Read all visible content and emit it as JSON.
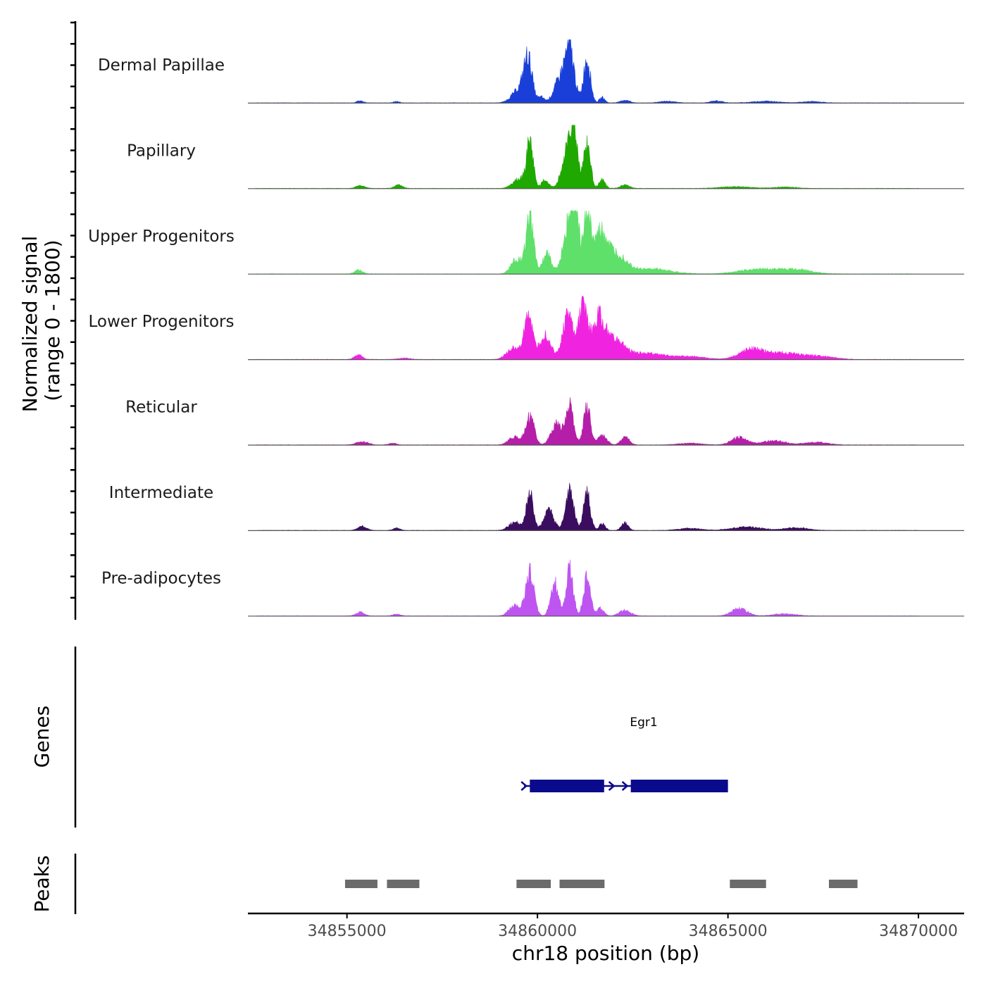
{
  "chart_data": {
    "type": "area",
    "ylabel_line1": "Normalized signal",
    "ylabel_line2": "(range 0 - 1800)",
    "y_range": [
      0,
      1800
    ],
    "xlabel": "chr18 position (bp)",
    "x_range": [
      34852400,
      34871200
    ],
    "x_ticks": [
      34855000,
      34860000,
      34865000,
      34870000
    ],
    "x_tick_labels": [
      "34855000",
      "34860000",
      "34865000",
      "34870000"
    ],
    "tracks": [
      {
        "name": "Dermal Papillae",
        "color": "#1a3fd9",
        "peaks": [
          [
            34855350,
            30,
            90
          ],
          [
            34856300,
            25,
            70
          ],
          [
            34859750,
            620,
            110
          ],
          [
            34859500,
            180,
            180
          ],
          [
            34860600,
            340,
            160
          ],
          [
            34860850,
            720,
            120
          ],
          [
            34860100,
            80,
            80
          ],
          [
            34861300,
            650,
            90
          ],
          [
            34861700,
            80,
            70
          ],
          [
            34862300,
            40,
            120
          ],
          [
            34863400,
            25,
            200
          ],
          [
            34864700,
            30,
            150
          ],
          [
            34866000,
            25,
            350
          ],
          [
            34867200,
            20,
            250
          ]
        ]
      },
      {
        "name": "Papillary",
        "color": "#1fa800",
        "peaks": [
          [
            34855350,
            40,
            120
          ],
          [
            34856350,
            55,
            100
          ],
          [
            34859800,
            660,
            90
          ],
          [
            34859500,
            140,
            160
          ],
          [
            34860200,
            120,
            90
          ],
          [
            34860800,
            520,
            150
          ],
          [
            34860950,
            690,
            100
          ],
          [
            34861300,
            650,
            90
          ],
          [
            34861700,
            120,
            80
          ],
          [
            34862300,
            50,
            120
          ],
          [
            34865200,
            25,
            400
          ],
          [
            34866500,
            20,
            300
          ]
        ]
      },
      {
        "name": "Upper Progenitors",
        "color": "#5ee06a",
        "peaks": [
          [
            34855300,
            60,
            100
          ],
          [
            34859800,
            800,
            100
          ],
          [
            34859450,
            220,
            140
          ],
          [
            34860250,
            280,
            120
          ],
          [
            34860800,
            720,
            130
          ],
          [
            34861000,
            850,
            90
          ],
          [
            34861300,
            880,
            90
          ],
          [
            34861650,
            560,
            180
          ],
          [
            34862100,
            260,
            250
          ],
          [
            34863000,
            70,
            500
          ],
          [
            34865800,
            70,
            500
          ],
          [
            34866800,
            60,
            400
          ]
        ]
      },
      {
        "name": "Lower Progenitors",
        "color": "#f024e0",
        "peaks": [
          [
            34855300,
            70,
            100
          ],
          [
            34856500,
            20,
            150
          ],
          [
            34859750,
            650,
            110
          ],
          [
            34859350,
            160,
            160
          ],
          [
            34860200,
            350,
            150
          ],
          [
            34860800,
            620,
            140
          ],
          [
            34861200,
            780,
            110
          ],
          [
            34861600,
            550,
            160
          ],
          [
            34862000,
            260,
            250
          ],
          [
            34862800,
            90,
            500
          ],
          [
            34864000,
            40,
            400
          ],
          [
            34865600,
            130,
            300
          ],
          [
            34866400,
            90,
            500
          ],
          [
            34867400,
            40,
            400
          ]
        ]
      },
      {
        "name": "Reticular",
        "color": "#b51ea8",
        "peaks": [
          [
            34855400,
            50,
            150
          ],
          [
            34856200,
            25,
            100
          ],
          [
            34859800,
            420,
            110
          ],
          [
            34859400,
            120,
            150
          ],
          [
            34860500,
            300,
            140
          ],
          [
            34860850,
            560,
            100
          ],
          [
            34861300,
            540,
            90
          ],
          [
            34861700,
            140,
            120
          ],
          [
            34862300,
            110,
            110
          ],
          [
            34864000,
            25,
            300
          ],
          [
            34865300,
            110,
            200
          ],
          [
            34866200,
            60,
            300
          ],
          [
            34867300,
            40,
            300
          ]
        ]
      },
      {
        "name": "Intermediate",
        "color": "#3a0d5e",
        "peaks": [
          [
            34855400,
            55,
            120
          ],
          [
            34856300,
            35,
            90
          ],
          [
            34859800,
            540,
            90
          ],
          [
            34859400,
            120,
            150
          ],
          [
            34860300,
            280,
            130
          ],
          [
            34860850,
            560,
            110
          ],
          [
            34861300,
            520,
            90
          ],
          [
            34861700,
            100,
            80
          ],
          [
            34862300,
            110,
            90
          ],
          [
            34864000,
            30,
            300
          ],
          [
            34865500,
            50,
            400
          ],
          [
            34866800,
            40,
            300
          ]
        ]
      },
      {
        "name": "Pre-adipocytes",
        "color": "#be55f0",
        "peaks": [
          [
            34855350,
            55,
            110
          ],
          [
            34856300,
            25,
            100
          ],
          [
            34859800,
            620,
            110
          ],
          [
            34859400,
            160,
            140
          ],
          [
            34860450,
            500,
            100
          ],
          [
            34860850,
            680,
            90
          ],
          [
            34861300,
            560,
            90
          ],
          [
            34861650,
            110,
            90
          ],
          [
            34862300,
            80,
            150
          ],
          [
            34865300,
            110,
            200
          ],
          [
            34866500,
            30,
            300
          ]
        ]
      }
    ],
    "genes_label": "Genes",
    "gene": {
      "name": "Egr1",
      "color": "#0a0a8c",
      "line": [
        34859650,
        34865000
      ],
      "exons": [
        [
          34859800,
          34861750
        ],
        [
          34862450,
          34865000
        ]
      ],
      "arrows": [
        34859650,
        34861950,
        34862300
      ]
    },
    "peaks_label": "Peaks",
    "peak_color": "#6b6b6b",
    "peak_regions": [
      [
        34854950,
        34855800
      ],
      [
        34856050,
        34856900
      ],
      [
        34859450,
        34860350
      ],
      [
        34860580,
        34861760
      ],
      [
        34865050,
        34866000
      ],
      [
        34867650,
        34868400
      ]
    ]
  }
}
